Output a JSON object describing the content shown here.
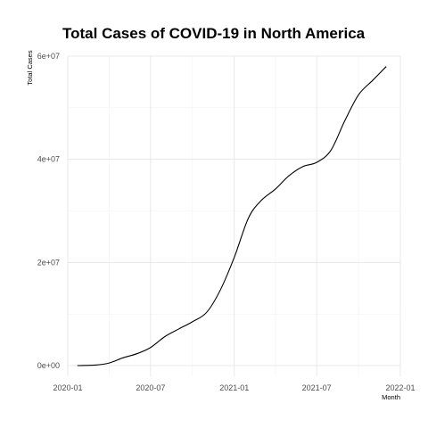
{
  "chart_data": {
    "type": "line",
    "title": "Total Cases of COVID-19 in North America",
    "xlabel": "Month",
    "ylabel": "Total Cases",
    "x_ticks": [
      "2020-01",
      "2020-07",
      "2021-01",
      "2021-07",
      "2022-01"
    ],
    "y_ticks": [
      "0e+00",
      "2e+07",
      "4e+07",
      "6e+07"
    ],
    "xlim": [
      "2020-01-01",
      "2022-01-01"
    ],
    "ylim": [
      0,
      60000000
    ],
    "grid": true,
    "series": [
      {
        "points": [
          [
            "2020-01-22",
            0
          ],
          [
            "2020-03-01",
            100000
          ],
          [
            "2020-04-01",
            500000
          ],
          [
            "2020-05-01",
            1500000
          ],
          [
            "2020-06-01",
            2300000
          ],
          [
            "2020-07-01",
            3500000
          ],
          [
            "2020-08-01",
            5600000
          ],
          [
            "2020-09-01",
            7100000
          ],
          [
            "2020-10-01",
            8500000
          ],
          [
            "2020-11-01",
            10300000
          ],
          [
            "2020-12-01",
            14600000
          ],
          [
            "2021-01-01",
            21000000
          ],
          [
            "2021-02-01",
            28600000
          ],
          [
            "2021-03-01",
            32000000
          ],
          [
            "2021-04-01",
            34200000
          ],
          [
            "2021-05-01",
            36800000
          ],
          [
            "2021-06-01",
            38600000
          ],
          [
            "2021-07-01",
            39400000
          ],
          [
            "2021-08-01",
            41700000
          ],
          [
            "2021-09-01",
            47500000
          ],
          [
            "2021-10-01",
            52500000
          ],
          [
            "2021-11-01",
            55300000
          ],
          [
            "2021-12-01",
            58000000
          ]
        ]
      }
    ]
  }
}
